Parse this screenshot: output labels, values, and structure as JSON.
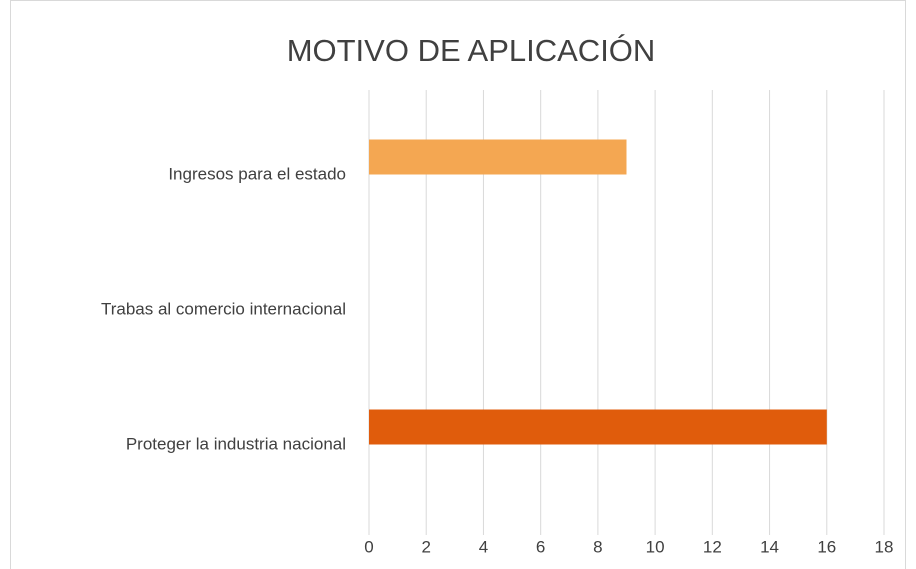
{
  "chart_data": {
    "type": "bar",
    "orientation": "horizontal",
    "title": "MOTIVO DE APLICACIÓN",
    "categories": [
      "Ingresos para el estado",
      "Trabas al comercio internacional",
      "Proteger la industria nacional"
    ],
    "values": [
      9,
      0,
      16
    ],
    "colors": [
      "#f4a752",
      null,
      "#e05c0c"
    ],
    "xlim": [
      0,
      18
    ],
    "xticks": [
      0,
      2,
      4,
      6,
      8,
      10,
      12,
      14,
      16,
      18
    ],
    "grid": true
  }
}
